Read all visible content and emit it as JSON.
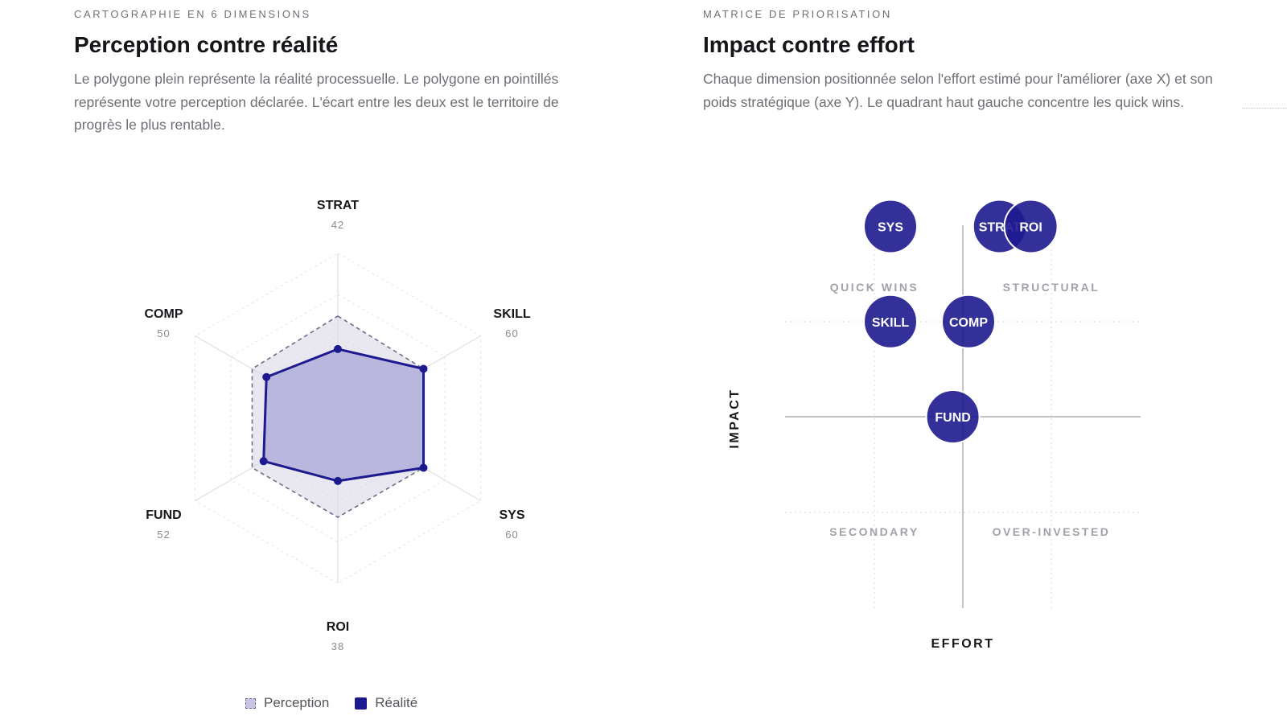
{
  "radar_panel": {
    "eyebrow": "CARTOGRAPHIE EN 6 DIMENSIONS",
    "title": "Perception contre réalité",
    "description": "Le polygone plein représente la réalité processuelle. Le polygone en pointillés représente votre perception déclarée. L'écart entre les deux est le territoire de progrès le plus rentable.",
    "legend": {
      "perception": "Perception",
      "reality": "Réalité"
    }
  },
  "matrix_panel": {
    "eyebrow": "MATRICE DE PRIORISATION",
    "title": "Impact contre effort",
    "description": "Chaque dimension positionnée selon l'effort estimé pour l'améliorer (axe X) et son poids stratégique (axe Y). Le quadrant haut gauche concentre les quick wins."
  },
  "chart_data": [
    {
      "type": "radar",
      "axes": [
        "STRAT",
        "SKILL",
        "SYS",
        "ROI",
        "FUND",
        "COMP"
      ],
      "axis_values": [
        42,
        60,
        60,
        38,
        52,
        50
      ],
      "rmax": 100,
      "grid_levels": [
        25,
        50,
        75,
        100
      ],
      "series": [
        {
          "name": "Perception",
          "values": [
            62,
            60,
            60,
            60,
            60,
            60
          ],
          "color": "#6d6d86",
          "fill": "#d7d5e6",
          "style": "dashed"
        },
        {
          "name": "Réalité",
          "values": [
            42,
            60,
            60,
            38,
            52,
            50
          ],
          "color": "#1d1a8f",
          "fill": "#b1aedb",
          "style": "solid"
        }
      ],
      "legend_position": "bottom"
    },
    {
      "type": "scatter",
      "xlabel": "EFFORT",
      "ylabel": "IMPACT",
      "xlim": [
        0,
        100
      ],
      "ylim": [
        0,
        100
      ],
      "quadrant_labels": [
        "QUICK WINS",
        "STRUCTURAL",
        "SECONDARY",
        "OVER-INVESTED"
      ],
      "points": [
        {
          "label": "SYS",
          "x": 40,
          "y": 100
        },
        {
          "label": "STRAT",
          "x": 54,
          "y": 100
        },
        {
          "label": "ROI",
          "x": 58,
          "y": 100
        },
        {
          "label": "SKILL",
          "x": 40,
          "y": 75
        },
        {
          "label": "COMP",
          "x": 50,
          "y": 75
        },
        {
          "label": "FUND",
          "x": 48,
          "y": 50
        }
      ],
      "point_color": "#1d1a8f"
    }
  ]
}
